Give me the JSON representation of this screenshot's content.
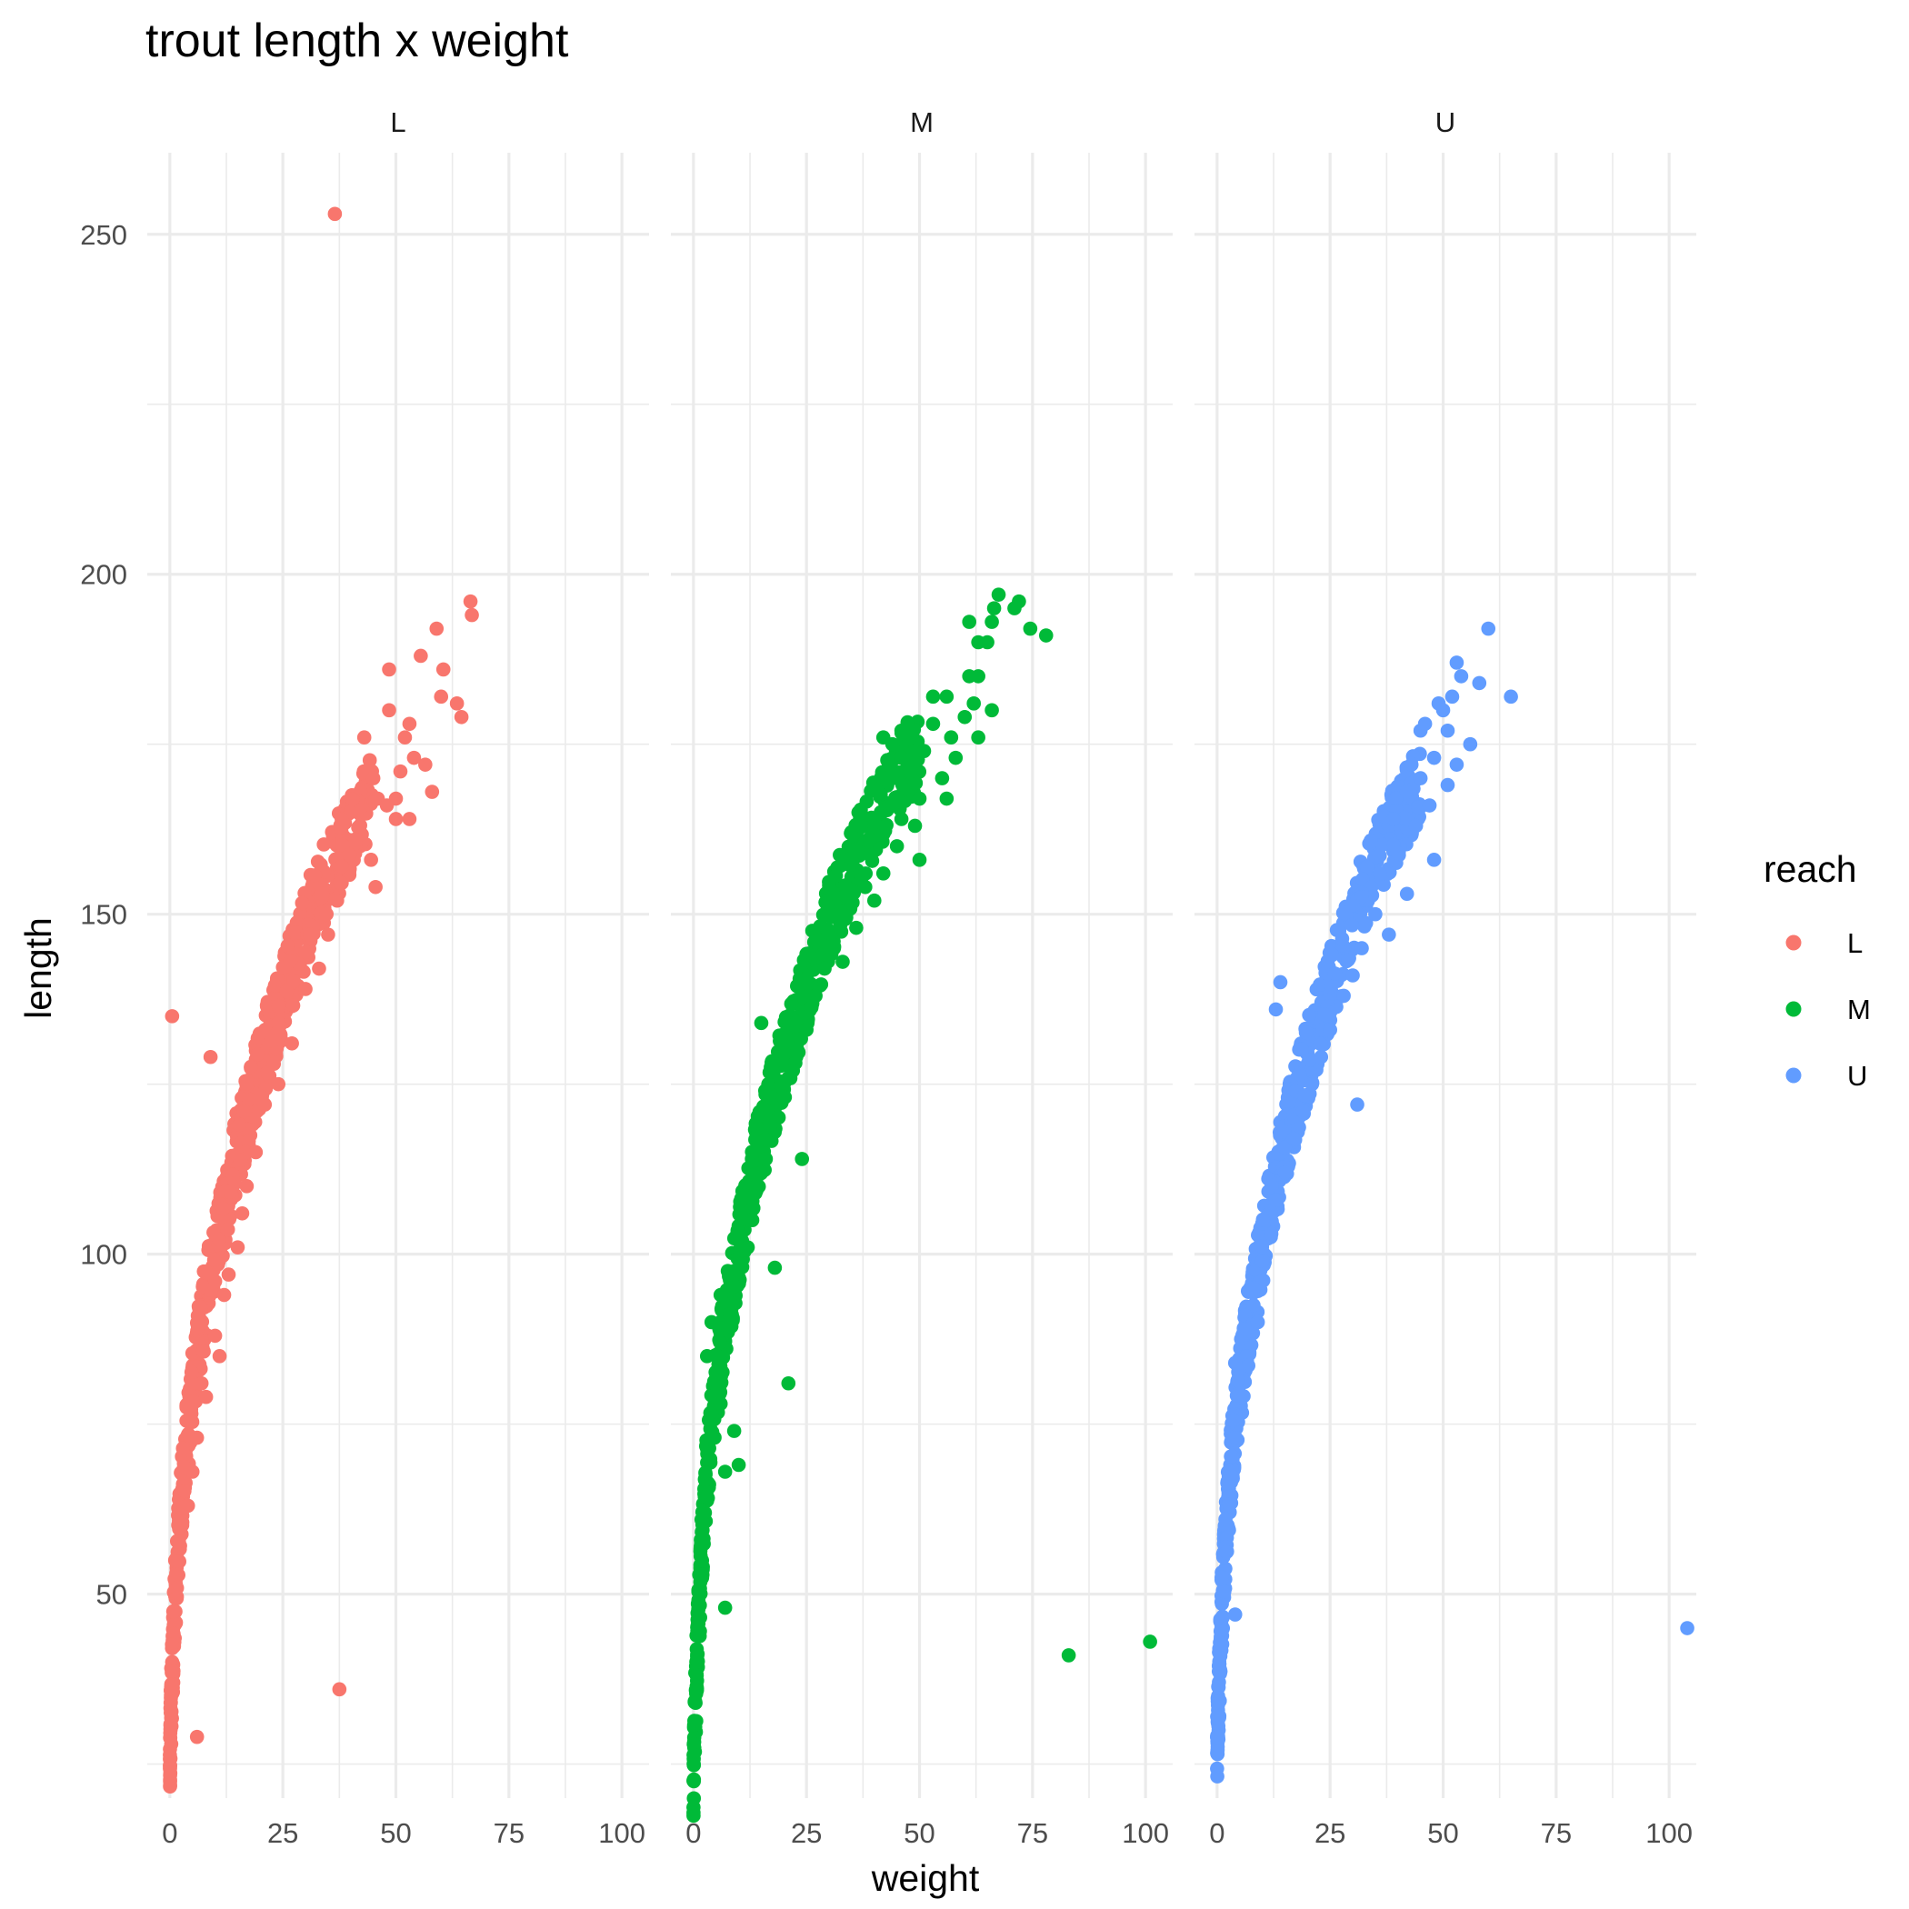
{
  "chart_data": {
    "type": "scatter",
    "title": "trout length x weight",
    "xlabel": "weight",
    "ylabel": "length",
    "legend_title": "reach",
    "legend_placement": "right",
    "grid": true,
    "xlim": [
      -5,
      106
    ],
    "ylim": [
      20,
      262
    ],
    "x_ticks": [
      0,
      25,
      50,
      75,
      100
    ],
    "y_ticks": [
      50,
      100,
      150,
      200,
      250
    ],
    "facets": [
      {
        "panel_label": "L",
        "color": "#F8766D",
        "trend": [
          [
            0,
            26
          ],
          [
            0.5,
            38
          ],
          [
            1,
            47
          ],
          [
            2,
            60
          ],
          [
            3,
            68
          ],
          [
            5,
            80
          ],
          [
            7,
            90
          ],
          [
            10,
            100
          ],
          [
            14,
            113
          ],
          [
            18,
            123
          ],
          [
            22,
            132
          ],
          [
            26,
            140
          ],
          [
            30,
            148
          ],
          [
            35,
            156
          ],
          [
            40,
            162
          ],
          [
            45,
            168
          ]
        ],
        "outliers": [
          [
            36.5,
            253
          ],
          [
            0.5,
            135
          ],
          [
            9,
            129
          ],
          [
            37.5,
            36
          ],
          [
            6,
            29
          ],
          [
            11,
            85
          ],
          [
            8,
            79
          ],
          [
            66.5,
            196
          ],
          [
            66.8,
            194
          ],
          [
            59,
            192
          ],
          [
            48.5,
            186
          ],
          [
            60.5,
            186
          ],
          [
            55.5,
            188
          ],
          [
            63.5,
            181
          ],
          [
            60,
            182
          ],
          [
            64.5,
            179
          ],
          [
            48.5,
            180
          ],
          [
            43,
            176
          ],
          [
            53,
            178
          ],
          [
            52,
            176
          ],
          [
            54,
            173
          ],
          [
            56.5,
            172
          ],
          [
            51,
            171
          ],
          [
            58,
            168
          ],
          [
            45,
            170
          ],
          [
            46,
            167
          ],
          [
            48,
            166
          ],
          [
            50,
            167
          ],
          [
            50,
            164
          ],
          [
            53,
            164
          ],
          [
            45.5,
            154
          ],
          [
            44.5,
            158
          ],
          [
            41,
            161
          ],
          [
            42,
            163
          ],
          [
            40,
            165
          ],
          [
            38,
            164
          ],
          [
            38,
            157
          ],
          [
            37,
            152
          ],
          [
            35,
            147
          ],
          [
            33,
            142
          ],
          [
            31,
            147
          ],
          [
            30,
            139
          ],
          [
            27,
            131
          ],
          [
            24,
            125
          ],
          [
            23,
            128
          ],
          [
            21,
            122
          ],
          [
            19,
            115
          ],
          [
            17,
            110
          ],
          [
            16,
            106
          ],
          [
            15,
            101
          ],
          [
            13,
            97
          ],
          [
            12,
            94
          ],
          [
            10,
            88
          ],
          [
            7,
            81
          ],
          [
            6,
            73
          ],
          [
            5,
            68
          ],
          [
            4,
            63
          ]
        ]
      },
      {
        "panel_label": "M",
        "color": "#00BA38",
        "trend": [
          [
            0,
            23
          ],
          [
            0.5,
            35
          ],
          [
            1,
            45
          ],
          [
            2,
            58
          ],
          [
            3,
            68
          ],
          [
            5,
            80
          ],
          [
            7,
            90
          ],
          [
            10,
            101
          ],
          [
            14,
            114
          ],
          [
            18,
            124
          ],
          [
            22,
            133
          ],
          [
            26,
            141
          ],
          [
            30,
            149
          ],
          [
            35,
            157
          ],
          [
            40,
            164
          ],
          [
            45,
            170
          ],
          [
            50,
            175
          ]
        ],
        "outliers": [
          [
            83,
            41
          ],
          [
            101,
            43
          ],
          [
            7,
            48
          ],
          [
            6,
            78
          ],
          [
            7,
            68
          ],
          [
            10,
            69
          ],
          [
            9,
            74
          ],
          [
            18,
            98
          ],
          [
            21,
            81
          ],
          [
            15,
            134
          ],
          [
            24,
            114
          ],
          [
            67.5,
            197
          ],
          [
            72,
            196
          ],
          [
            71,
            195
          ],
          [
            66.5,
            195
          ],
          [
            66,
            193
          ],
          [
            61,
            193
          ],
          [
            74.5,
            192
          ],
          [
            78,
            191
          ],
          [
            63,
            190
          ],
          [
            65,
            190
          ],
          [
            61,
            185
          ],
          [
            63,
            185
          ],
          [
            66,
            180
          ],
          [
            56,
            182
          ],
          [
            53,
            182
          ],
          [
            62,
            181
          ],
          [
            60,
            179
          ],
          [
            53,
            178
          ],
          [
            63,
            176
          ],
          [
            46,
            177
          ],
          [
            42,
            176
          ],
          [
            57,
            176
          ],
          [
            44,
            175
          ],
          [
            51,
            174
          ],
          [
            58,
            173
          ],
          [
            46,
            173
          ],
          [
            48,
            171
          ],
          [
            43,
            170
          ],
          [
            55,
            170
          ],
          [
            41,
            168
          ],
          [
            56,
            167
          ],
          [
            50,
            167
          ],
          [
            44,
            166
          ],
          [
            46,
            164
          ],
          [
            49,
            163
          ],
          [
            37,
            163
          ],
          [
            39,
            161
          ],
          [
            45,
            160
          ],
          [
            50,
            158
          ],
          [
            35,
            158
          ],
          [
            42,
            156
          ],
          [
            38,
            154
          ],
          [
            40,
            152
          ],
          [
            33,
            150
          ],
          [
            36,
            148
          ],
          [
            31,
            146
          ],
          [
            33,
            143
          ],
          [
            29,
            142
          ],
          [
            27,
            138
          ],
          [
            25,
            133
          ],
          [
            23,
            130
          ],
          [
            22,
            127
          ],
          [
            20,
            123
          ],
          [
            17,
            119
          ],
          [
            16,
            114
          ],
          [
            14,
            110
          ],
          [
            13,
            105
          ],
          [
            12,
            101
          ],
          [
            9,
            97
          ],
          [
            6,
            94
          ],
          [
            4,
            90
          ],
          [
            3,
            85
          ]
        ]
      },
      {
        "panel_label": "U",
        "color": "#619CFF",
        "trend": [
          [
            0,
            27
          ],
          [
            0.5,
            38
          ],
          [
            1,
            47
          ],
          [
            2,
            59
          ],
          [
            3,
            68
          ],
          [
            5,
            80
          ],
          [
            7,
            90
          ],
          [
            10,
            101
          ],
          [
            14,
            114
          ],
          [
            18,
            124
          ],
          [
            22,
            133
          ],
          [
            26,
            141
          ],
          [
            30,
            149
          ],
          [
            35,
            157
          ],
          [
            40,
            164
          ],
          [
            45,
            170
          ]
        ],
        "outliers": [
          [
            104,
            45
          ],
          [
            4,
            47
          ],
          [
            31,
            122
          ],
          [
            14,
            140
          ],
          [
            13,
            136
          ],
          [
            60,
            192
          ],
          [
            53,
            187
          ],
          [
            58,
            184
          ],
          [
            54,
            185
          ],
          [
            65,
            182
          ],
          [
            49,
            181
          ],
          [
            52,
            182
          ],
          [
            50,
            180
          ],
          [
            45,
            177
          ],
          [
            46,
            178
          ],
          [
            51,
            177
          ],
          [
            56,
            175
          ],
          [
            48,
            173
          ],
          [
            53,
            172
          ],
          [
            43,
            172
          ],
          [
            45,
            170
          ],
          [
            51,
            169
          ],
          [
            42,
            168
          ],
          [
            47,
            166
          ],
          [
            39,
            164
          ],
          [
            44,
            163
          ],
          [
            48,
            158
          ],
          [
            40,
            159
          ],
          [
            36,
            156
          ],
          [
            42,
            153
          ],
          [
            35,
            150
          ],
          [
            38,
            147
          ],
          [
            32,
            145
          ],
          [
            30,
            141
          ],
          [
            28,
            138
          ],
          [
            25,
            133
          ],
          [
            23,
            129
          ],
          [
            21,
            125
          ],
          [
            19,
            121
          ],
          [
            17,
            117
          ],
          [
            15,
            112
          ],
          [
            13,
            108
          ],
          [
            12,
            103
          ],
          [
            10,
            99
          ],
          [
            8,
            95
          ],
          [
            6,
            89
          ],
          [
            4,
            84
          ],
          [
            9,
            90
          ]
        ]
      }
    ],
    "legend": [
      {
        "label": "L",
        "color": "#F8766D"
      },
      {
        "label": "M",
        "color": "#00BA38"
      },
      {
        "label": "U",
        "color": "#619CFF"
      }
    ]
  }
}
